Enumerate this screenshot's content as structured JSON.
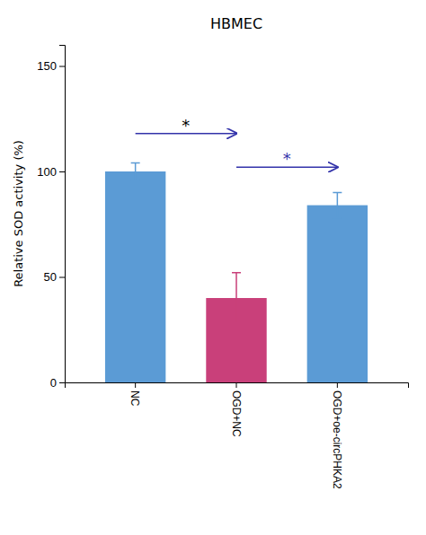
{
  "chart_data": {
    "type": "bar",
    "title": "HBMEC",
    "ylabel": "Relative SOD activity (%)",
    "categories": [
      "NC",
      "OGD+NC",
      "OGD+oe-circPHKA2"
    ],
    "values": [
      100,
      40,
      84
    ],
    "errors": [
      4,
      12,
      6
    ],
    "colors": [
      "#5B9BD5",
      "#C9407A",
      "#5B9BD5"
    ],
    "ylim": [
      0,
      160
    ],
    "yticks": [
      0,
      50,
      100,
      150
    ],
    "annotations": [
      {
        "text": "*",
        "from": "NC",
        "to": "OGD+NC",
        "y": 118,
        "color": "#000000"
      },
      {
        "text": "*",
        "from": "OGD+NC",
        "to": "OGD+oe-circPHKA2",
        "y": 102,
        "color": "#3333AA"
      }
    ]
  }
}
